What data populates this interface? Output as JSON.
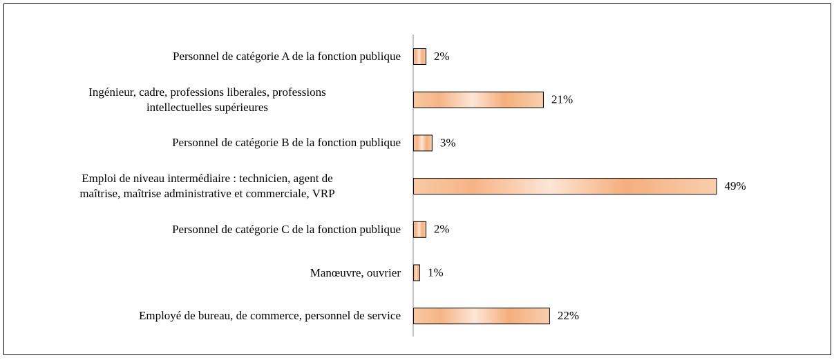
{
  "chart_data": {
    "type": "bar",
    "orientation": "horizontal",
    "categories": [
      "Personnel de catégorie A de la fonction publique",
      "Ingénieur, cadre, professions liberales, professions\nintellectuelles supérieures",
      "Personnel de catégorie B de la fonction publique",
      "Emploi de niveau intermédiaire : technicien, agent de\nmaîtrise, maîtrise administrative et commerciale, VRP",
      "Personnel de catégorie C de la fonction publique",
      "Manœuvre, ouvrier",
      "Employé de bureau, de commerce, personnel de service"
    ],
    "values": [
      2,
      21,
      3,
      49,
      2,
      1,
      22
    ],
    "value_labels": [
      "2%",
      "21%",
      "3%",
      "49%",
      "2%",
      "1%",
      "22%"
    ]
  }
}
